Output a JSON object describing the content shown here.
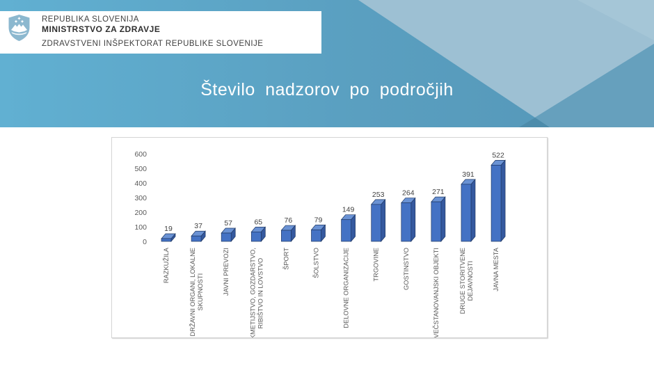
{
  "header": {
    "republic": "REPUBLIKA SLOVENIJA",
    "ministry": "MINISTRSTVO ZA ZDRAVJE",
    "inspectorate": "ZDRAVSTVENI INŠPEKTORAT REPUBLIKE SLOVENIJE",
    "coat_of_arms": "slovenia-coat-of-arms"
  },
  "title": "Število nadzorov po področjih",
  "colors": {
    "band_left": "#61b0d2",
    "band_right": "#5496b7",
    "band_light_poly": "#9dc0d3",
    "band_medium_poly": "#66a0bd",
    "band_dark_poly": "#4d8cab",
    "band_lighter_wedge": "#aecbdb",
    "bar_front": "#4472c4",
    "bar_side": "#35599f",
    "bar_top": "#6a92d4",
    "bar_outline": "#1f3864",
    "axis_text": "#595959",
    "value_text": "#3f3f3f"
  },
  "chart_data": {
    "type": "bar",
    "style": "3d-column",
    "title": "Število nadzorov po področjih",
    "xlabel": "",
    "ylabel": "",
    "ylim": [
      0,
      600
    ],
    "y_ticks": [
      0,
      100,
      200,
      300,
      400,
      500,
      600
    ],
    "grid": false,
    "legend": "none",
    "categories": [
      [
        "RAZKUŽILA"
      ],
      [
        "DRŽAVNI ORGANI, LOKALNE",
        "SKUPNOSTI"
      ],
      [
        "JAVNI PREVOZI"
      ],
      [
        "KMETIJSTVO, GOZDARSTVO,",
        "RIBIŠTVO IN LOVSTVO"
      ],
      [
        "ŠPORT"
      ],
      [
        "ŠOLSTVO"
      ],
      [
        "DELOVNE ORGANIZACIJE"
      ],
      [
        "TRGOVINE"
      ],
      [
        "GOSTINSTVO"
      ],
      [
        "VEČSTANOVANJSKI OBJEKTI"
      ],
      [
        "DRUGE STORITVENE",
        "DEJAVNOSTI"
      ],
      [
        "JAVNA MESTA"
      ]
    ],
    "values": [
      19,
      37,
      57,
      65,
      76,
      79,
      149,
      253,
      264,
      271,
      391,
      522
    ]
  }
}
